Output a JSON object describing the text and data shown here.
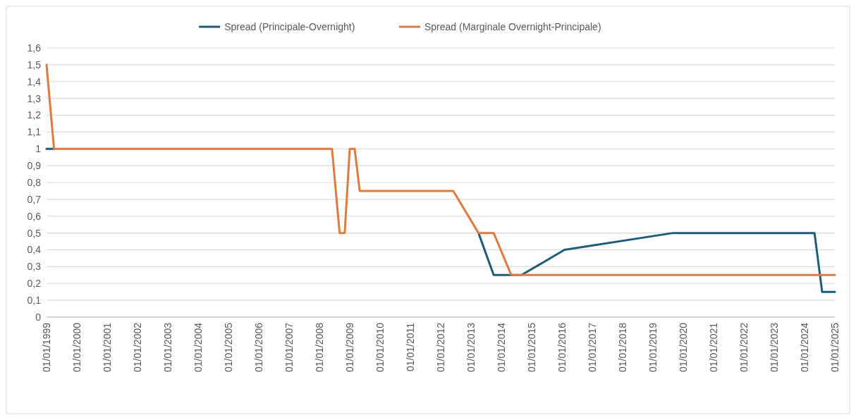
{
  "chart_data": {
    "type": "line",
    "series": [
      {
        "name": "Spread (Principale-Overnight)",
        "color": "#1f5c7a",
        "x": [
          "1999-01-01",
          "1999-04-01",
          "2008-06-01",
          "2013-04-01",
          "2013-10-01",
          "2014-05-01",
          "2014-09-01",
          "2016-02-01",
          "2019-09-01",
          "2024-05-01",
          "2024-08-01",
          "2025-01-01"
        ],
        "values": [
          1,
          1,
          null,
          0.5,
          0.25,
          0.25,
          0.25,
          0.4,
          0.5,
          0.5,
          0.15,
          0.15
        ]
      },
      {
        "name": "Spread (Marginale Overnight-Principale)",
        "color": "#e07a3e",
        "x": [
          "1999-01-01",
          "1999-04-01",
          "2008-06-01",
          "2008-09-01",
          "2008-11-01",
          "2009-01-01",
          "2009-03-01",
          "2009-05-01",
          "2012-06-01",
          "2013-04-01",
          "2013-10-01",
          "2014-05-01",
          "2025-01-01"
        ],
        "values": [
          1.5,
          1,
          1,
          0.5,
          0.5,
          1,
          1,
          0.75,
          0.75,
          0.5,
          0.5,
          0.25,
          0.25
        ]
      }
    ],
    "xlim": [
      "1999-01-01",
      "2025-01-01"
    ],
    "xticks": [
      {
        "value": "1999-01-01",
        "label": "01/01/1999"
      },
      {
        "value": "2000-01-01",
        "label": "01/01/2000"
      },
      {
        "value": "2001-01-01",
        "label": "01/01/2001"
      },
      {
        "value": "2002-01-01",
        "label": "01/01/2002"
      },
      {
        "value": "2003-01-01",
        "label": "01/01/2003"
      },
      {
        "value": "2004-01-01",
        "label": "01/01/2004"
      },
      {
        "value": "2005-01-01",
        "label": "01/01/2005"
      },
      {
        "value": "2006-01-01",
        "label": "01/01/2006"
      },
      {
        "value": "2007-01-01",
        "label": "01/01/2007"
      },
      {
        "value": "2008-01-01",
        "label": "01/01/2008"
      },
      {
        "value": "2009-01-01",
        "label": "01/01/2009"
      },
      {
        "value": "2010-01-01",
        "label": "01/01/2010"
      },
      {
        "value": "2011-01-01",
        "label": "01/01/2011"
      },
      {
        "value": "2012-01-01",
        "label": "01/01/2012"
      },
      {
        "value": "2013-01-01",
        "label": "01/01/2013"
      },
      {
        "value": "2014-01-01",
        "label": "01/01/2014"
      },
      {
        "value": "2015-01-01",
        "label": "01/01/2015"
      },
      {
        "value": "2016-01-01",
        "label": "01/01/2016"
      },
      {
        "value": "2017-01-01",
        "label": "01/01/2017"
      },
      {
        "value": "2018-01-01",
        "label": "01/01/2018"
      },
      {
        "value": "2019-01-01",
        "label": "01/01/2019"
      },
      {
        "value": "2020-01-01",
        "label": "01/01/2020"
      },
      {
        "value": "2021-01-01",
        "label": "01/01/2021"
      },
      {
        "value": "2022-01-01",
        "label": "01/01/2022"
      },
      {
        "value": "2023-01-01",
        "label": "01/01/2023"
      },
      {
        "value": "2024-01-01",
        "label": "01/01/2024"
      },
      {
        "value": "2025-01-01",
        "label": "01/01/2025"
      }
    ],
    "ylim": [
      0,
      1.6
    ],
    "yticks": [
      0,
      {
        "value": 0.1,
        "label": "0,1"
      },
      {
        "value": 0.2,
        "label": "0,2"
      },
      {
        "value": 0.3,
        "label": "0,3"
      },
      {
        "value": 0.4,
        "label": "0,4"
      },
      {
        "value": 0.5,
        "label": "0,5"
      },
      {
        "value": 0.6,
        "label": "0,6"
      },
      {
        "value": 0.7,
        "label": "0,7"
      },
      {
        "value": 0.8,
        "label": "0,8"
      },
      {
        "value": 0.9,
        "label": "0,9"
      },
      1,
      {
        "value": 1.1,
        "label": "1,1"
      },
      {
        "value": 1.2,
        "label": "1,2"
      },
      {
        "value": 1.3,
        "label": "1,3"
      },
      {
        "value": 1.4,
        "label": "1,4"
      },
      {
        "value": 1.5,
        "label": "1,5"
      },
      {
        "value": 1.6,
        "label": "1,6"
      }
    ],
    "grid": "y",
    "legend": "top",
    "line_style": "solid",
    "marker": "none"
  }
}
